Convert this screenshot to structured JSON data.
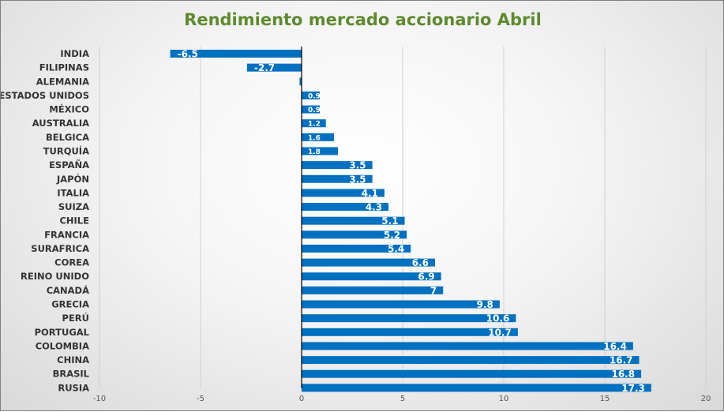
{
  "chart_data": {
    "type": "bar",
    "orientation": "horizontal",
    "title": "Rendimiento mercado accionario Abril",
    "xlabel": "",
    "ylabel": "",
    "xlim": [
      -10,
      20
    ],
    "x_ticks": [
      "-10",
      "-5",
      "0",
      "5",
      "10",
      "15",
      "20"
    ],
    "grid": true,
    "bar_color": "#0070c0",
    "title_color": "#5e8a2e",
    "categories": [
      "INDIA",
      "FILIPINAS",
      "ALEMANIA",
      "ESTADOS UNIDOS",
      "MÉXICO",
      "AUSTRALIA",
      "BELGICA",
      "TURQUÍA",
      "ESPAÑA",
      "JAPÓN",
      "ITALIA",
      "SUIZA",
      "CHILE",
      "FRANCIA",
      "SURAFRICA",
      "COREA",
      "REINO UNIDO",
      "CANADÁ",
      "GRECIA",
      "PERÚ",
      "PORTUGAL",
      "COLOMBIA",
      "CHINA",
      "BRASIL",
      "RUSIA"
    ],
    "values": [
      -6.5,
      -2.7,
      -0.1,
      0.9,
      0.9,
      1.2,
      1.6,
      1.8,
      3.5,
      3.5,
      4.1,
      4.3,
      5.1,
      5.2,
      5.4,
      6.6,
      6.9,
      7,
      9.8,
      10.6,
      10.7,
      16.4,
      16.7,
      16.8,
      17.3
    ],
    "data_labels": [
      "-6.5",
      "-2.7",
      "",
      "0.9",
      "0.9",
      "1.2",
      "1.6",
      "1.8",
      "3.5",
      "3.5",
      "4.1",
      "4.3",
      "5.1",
      "5.2",
      "5.4",
      "6.6",
      "6.9",
      "7",
      "9.8",
      "10.6",
      "10.7",
      "16.4",
      "16.7",
      "16.8",
      "17.3"
    ]
  }
}
